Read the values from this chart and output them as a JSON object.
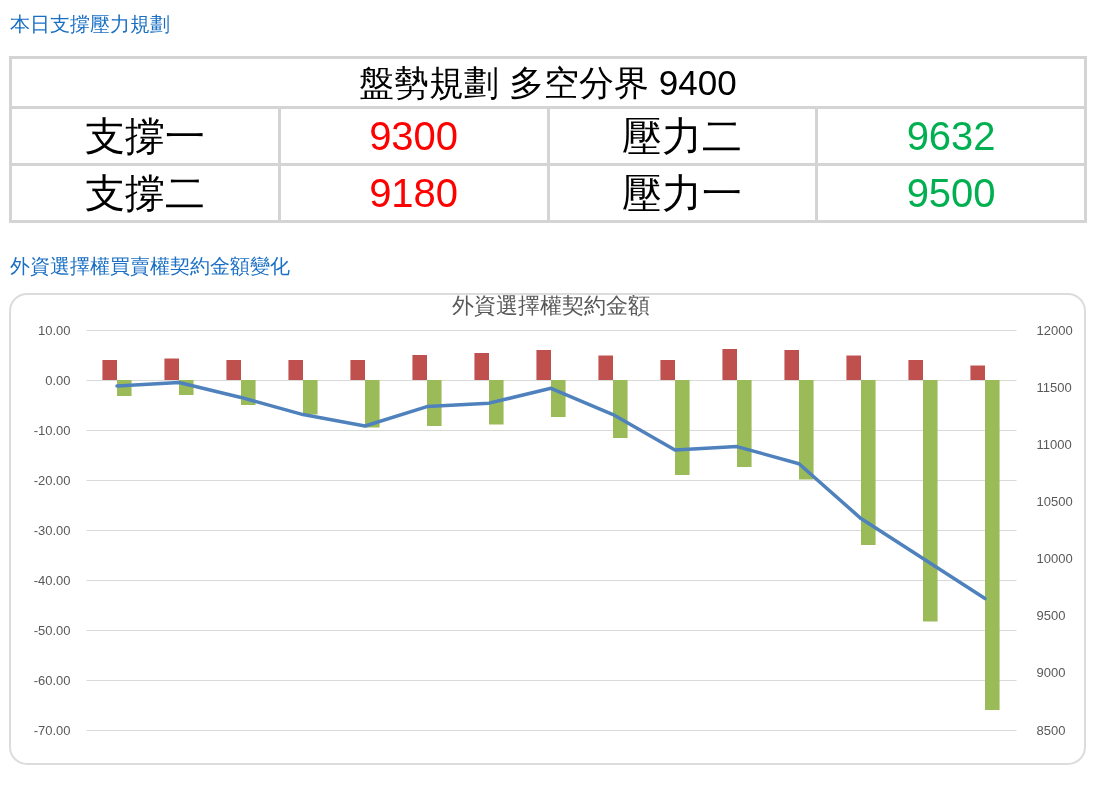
{
  "chart_data": [
    {
      "type": "other",
      "title": "本日支撐壓力規劃",
      "annotations": [
        "盤勢規劃 多空分界 9400",
        "支撐一",
        "9300",
        "壓力二",
        "9632",
        "支撐二",
        "9180",
        "壓力一",
        "9500"
      ],
      "colors": [
        "#000000",
        "#000000",
        "#ff0000",
        "#000000",
        "#00b050",
        "#000000",
        "#ff0000",
        "#000000",
        "#00b050"
      ]
    },
    {
      "type": "bar",
      "title": "外資選擇權買賣權契約金額變化",
      "subtitle": "外資選擇權契約金額",
      "categories": [
        null,
        null,
        null,
        null,
        null,
        null,
        null,
        null,
        null,
        null,
        null,
        null,
        null,
        null,
        null
      ],
      "series": [
        {
          "color": "#c0504d",
          "values": [
            4.0,
            4.3,
            4.0,
            4.0,
            4.0,
            5.0,
            5.4,
            6.0,
            4.9,
            4.0,
            6.2,
            6.0,
            4.9,
            4.0,
            2.9
          ]
        },
        {
          "color": "#9bbb59",
          "values": [
            -3.2,
            -3.0,
            -5.0,
            -6.9,
            -9.5,
            -9.2,
            -8.9,
            -7.4,
            -11.6,
            -19.0,
            -17.4,
            -19.9,
            -33.0,
            -48.3,
            -66.0
          ]
        },
        {
          "type": "line",
          "axis": "y2",
          "color": "#4f81bd",
          "values": [
            11510,
            11540,
            11410,
            11260,
            11160,
            11330,
            11360,
            11490,
            11260,
            10950,
            10980,
            10830,
            10350,
            10000,
            9650
          ]
        }
      ],
      "ylim": [
        -70,
        10
      ],
      "yticks": [
        {
          "value": -70,
          "label": "-70.00"
        },
        {
          "value": -60,
          "label": "-60.00"
        },
        {
          "value": -50,
          "label": "-50.00"
        },
        {
          "value": -40,
          "label": "-40.00"
        },
        {
          "value": -30,
          "label": "-30.00"
        },
        {
          "value": -20,
          "label": "-20.00"
        },
        {
          "value": -10,
          "label": "-10.00"
        },
        {
          "value": 0,
          "label": "0.00"
        },
        {
          "value": 10,
          "label": "10.00"
        }
      ],
      "y2lim": [
        8500,
        12000
      ],
      "y2ticks": [
        8500,
        9000,
        9500,
        10000,
        10500,
        11000,
        11500,
        12000
      ],
      "grid": "y"
    }
  ]
}
